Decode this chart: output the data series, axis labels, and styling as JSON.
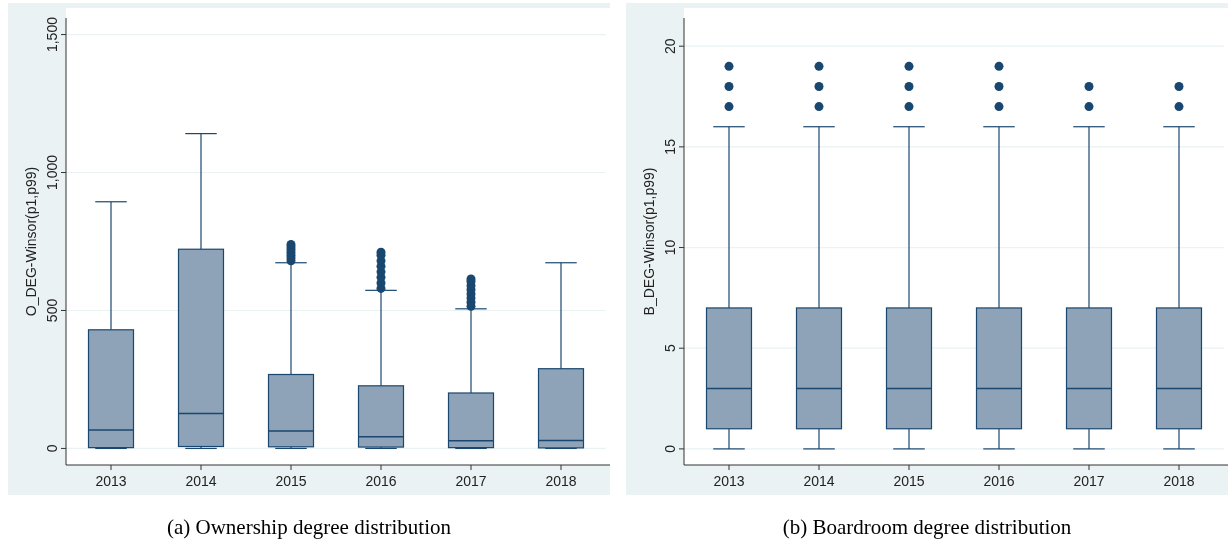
{
  "chart_data": [
    {
      "type": "box",
      "title": "(a) Ownership degree distribution",
      "ylabel": "O_DEG-Winsor(p1,p99)",
      "categories": [
        "2013",
        "2014",
        "2015",
        "2016",
        "2017",
        "2018"
      ],
      "color": "#8ea3b7",
      "grid": "y",
      "ylim": [
        -60,
        1560
      ],
      "yticks": [
        0,
        500,
        {
          "value": 1000,
          "label": "1,000"
        },
        {
          "value": 1500,
          "label": "1,500"
        }
      ],
      "boxes": [
        {
          "low": 0,
          "q1": 3,
          "median": 67,
          "q3": 430,
          "high": 894
        },
        {
          "low": 0,
          "q1": 7,
          "median": 127,
          "q3": 722,
          "high": 1141
        },
        {
          "low": 0,
          "q1": 6,
          "median": 63,
          "q3": 268,
          "high": 673,
          "outliers": [
            680,
            690,
            700,
            710,
            720,
            730,
            739
          ]
        },
        {
          "low": 0,
          "q1": 5,
          "median": 42,
          "q3": 227,
          "high": 573,
          "outliers": [
            580,
            600,
            620,
            640,
            660,
            680,
            700,
            711
          ]
        },
        {
          "low": 0,
          "q1": 3,
          "median": 28,
          "q3": 201,
          "high": 506,
          "outliers": [
            515,
            530,
            545,
            560,
            575,
            590,
            605,
            614
          ]
        },
        {
          "low": 0,
          "q1": 2,
          "median": 29,
          "q3": 289,
          "high": 673
        }
      ]
    },
    {
      "type": "box",
      "title": "(b) Boardroom degree distribution",
      "ylabel": "B_DEG-Winsor(p1,p99)",
      "categories": [
        "2013",
        "2014",
        "2015",
        "2016",
        "2017",
        "2018"
      ],
      "color": "#8ea3b7",
      "grid": "y",
      "ylim": [
        -0.8,
        21.4
      ],
      "yticks": [
        0,
        5,
        10,
        15,
        20
      ],
      "boxes": [
        {
          "low": 0,
          "q1": 1,
          "median": 3,
          "q3": 7,
          "high": 16,
          "outliers": [
            17,
            18,
            19
          ]
        },
        {
          "low": 0,
          "q1": 1,
          "median": 3,
          "q3": 7,
          "high": 16,
          "outliers": [
            17,
            18,
            19
          ]
        },
        {
          "low": 0,
          "q1": 1,
          "median": 3,
          "q3": 7,
          "high": 16,
          "outliers": [
            17,
            18,
            19
          ]
        },
        {
          "low": 0,
          "q1": 1,
          "median": 3,
          "q3": 7,
          "high": 16,
          "outliers": [
            17,
            18,
            19
          ]
        },
        {
          "low": 0,
          "q1": 1,
          "median": 3,
          "q3": 7,
          "high": 16,
          "outliers": [
            17,
            18
          ]
        },
        {
          "low": 0,
          "q1": 1,
          "median": 3,
          "q3": 7,
          "high": 16,
          "outliers": [
            17,
            18
          ]
        }
      ]
    }
  ]
}
